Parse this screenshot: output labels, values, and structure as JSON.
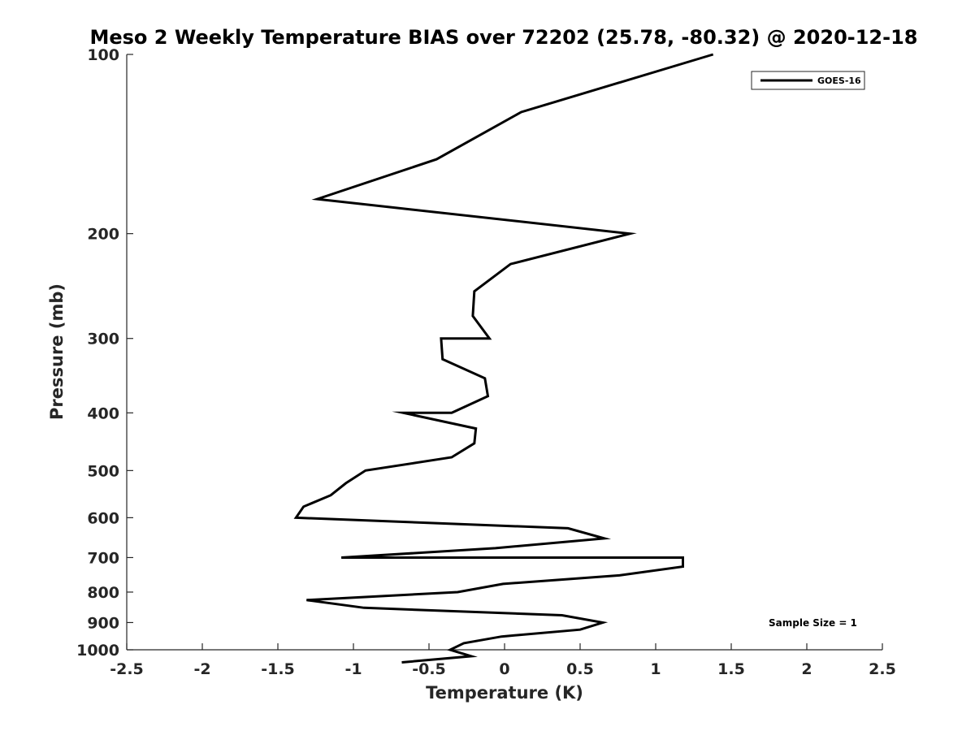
{
  "chart_data": {
    "type": "line",
    "title": "Meso 2 Weekly Temperature BIAS over 72202 (25.78, -80.32) @ 2020-12-18",
    "xlabel": "Temperature (K)",
    "ylabel": "Pressure (mb)",
    "xlim": [
      -2.5,
      2.5
    ],
    "ylim": [
      100,
      1000
    ],
    "yscale": "log",
    "yreversed": true,
    "xticks": [
      -2.5,
      -2,
      -1.5,
      -1,
      -0.5,
      0,
      0.5,
      1,
      1.5,
      2,
      2.5
    ],
    "xtick_labels": [
      "-2.5",
      "-2",
      "-1.5",
      "-1",
      "-0.5",
      "0",
      "0.5",
      "1",
      "1.5",
      "2",
      "2.5"
    ],
    "yticks": [
      100,
      200,
      300,
      400,
      500,
      600,
      700,
      800,
      900,
      1000
    ],
    "ytick_labels": [
      "100",
      "200",
      "300",
      "400",
      "500",
      "600",
      "700",
      "800",
      "900",
      "1000"
    ],
    "grid": false,
    "legend_position": "top-right",
    "annotation": "Sample Size = 1",
    "series": [
      {
        "name": "GOES-16",
        "color": "#000000",
        "points": [
          [
            1.38,
            100
          ],
          [
            0.11,
            125
          ],
          [
            -0.45,
            150
          ],
          [
            -1.24,
            175
          ],
          [
            0.83,
            200
          ],
          [
            0.04,
            225
          ],
          [
            -0.2,
            250
          ],
          [
            -0.21,
            275
          ],
          [
            -0.1,
            300
          ],
          [
            -0.42,
            300
          ],
          [
            -0.41,
            325
          ],
          [
            -0.13,
            350
          ],
          [
            -0.11,
            375
          ],
          [
            -0.35,
            400
          ],
          [
            -0.67,
            400
          ],
          [
            -0.19,
            425
          ],
          [
            -0.2,
            450
          ],
          [
            -0.35,
            475
          ],
          [
            -0.92,
            500
          ],
          [
            -1.05,
            525
          ],
          [
            -1.15,
            550
          ],
          [
            -1.33,
            575
          ],
          [
            -1.38,
            600
          ],
          [
            0.42,
            625
          ],
          [
            0.66,
            650
          ],
          [
            -0.06,
            675
          ],
          [
            -1.08,
            700
          ],
          [
            1.18,
            700
          ],
          [
            1.18,
            725
          ],
          [
            0.76,
            750
          ],
          [
            -0.01,
            775
          ],
          [
            -0.31,
            800
          ],
          [
            -1.31,
            825
          ],
          [
            -0.93,
            850
          ],
          [
            0.38,
            875
          ],
          [
            0.65,
            900
          ],
          [
            0.5,
            925
          ],
          [
            -0.02,
            950
          ],
          [
            -0.27,
            975
          ],
          [
            -0.36,
            1000
          ],
          [
            -0.22,
            1025
          ],
          [
            -0.68,
            1050
          ]
        ]
      }
    ]
  }
}
